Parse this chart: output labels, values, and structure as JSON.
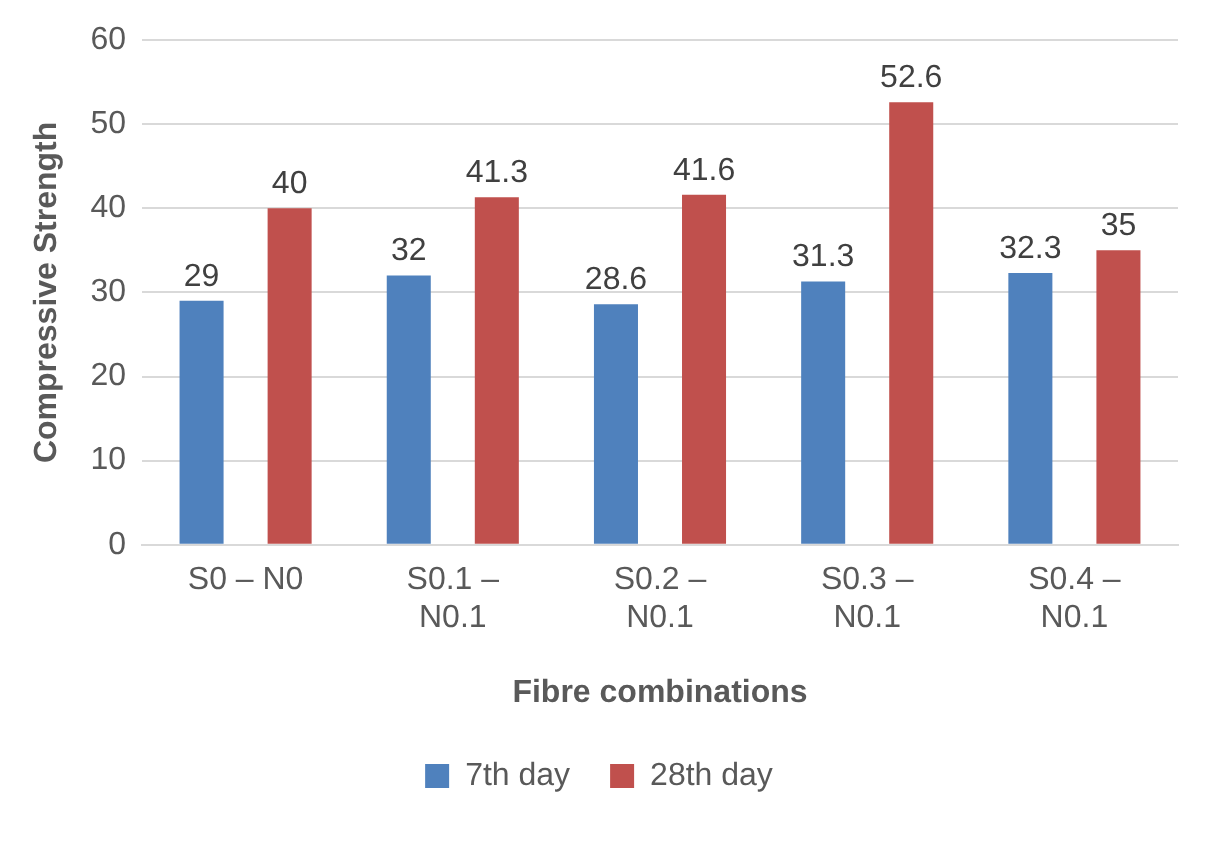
{
  "chart_data": {
    "type": "bar",
    "xlabel": "Fibre combinations",
    "ylabel": "Compressive Strength",
    "categories": [
      "S0 – N0",
      "S0.1 – N0.1",
      "S0.2 – N0.1",
      "S0.3 – N0.1",
      "S0.4 – N0.1"
    ],
    "series": [
      {
        "name": "7th day",
        "color": "#4f81bd",
        "values": [
          29,
          32,
          28.6,
          31.3,
          32.3
        ]
      },
      {
        "name": "28th day",
        "color": "#c0504d",
        "values": [
          40,
          41.3,
          41.6,
          52.6,
          35
        ]
      }
    ],
    "ylim": [
      0,
      60
    ],
    "yticks": [
      0,
      10,
      20,
      30,
      40,
      50,
      60
    ],
    "grid": "y",
    "legend": "bottom",
    "data_labels": true
  }
}
